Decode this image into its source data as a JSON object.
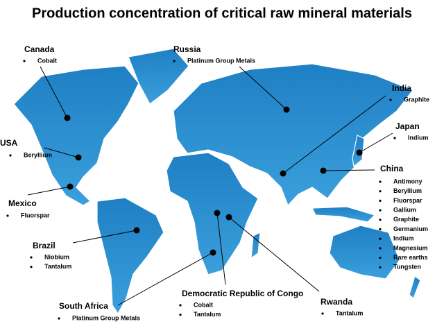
{
  "title": "Production concentration of critical raw mineral materials",
  "countries": [
    {
      "name": "Canada",
      "minerals": [
        "Cobalt"
      ]
    },
    {
      "name": "Russia",
      "minerals": [
        "Platinum Group Metals"
      ]
    },
    {
      "name": "India",
      "minerals": [
        "Graphite"
      ]
    },
    {
      "name": "Japan",
      "minerals": [
        "Indium"
      ]
    },
    {
      "name": "USA",
      "minerals": [
        "Beryllium"
      ]
    },
    {
      "name": "China",
      "minerals": [
        "Antimony",
        "Beryllium",
        "Fluorspar",
        "Gallium",
        "Graphite",
        "Germanium",
        "Indium",
        "Magnesium",
        "Rare earths",
        "Tungsten"
      ]
    },
    {
      "name": "Mexico",
      "minerals": [
        "Fluorspar"
      ]
    },
    {
      "name": "Brazil",
      "minerals": [
        "Niobium",
        "Tantalum"
      ]
    },
    {
      "name": "South Africa",
      "minerals": [
        "Platinum Group Metals"
      ]
    },
    {
      "name": "Democratic Republic of Congo",
      "minerals": [
        "Cobalt",
        "Tantalum"
      ]
    },
    {
      "name": "Rwanda",
      "minerals": [
        "Tantalum"
      ]
    }
  ]
}
